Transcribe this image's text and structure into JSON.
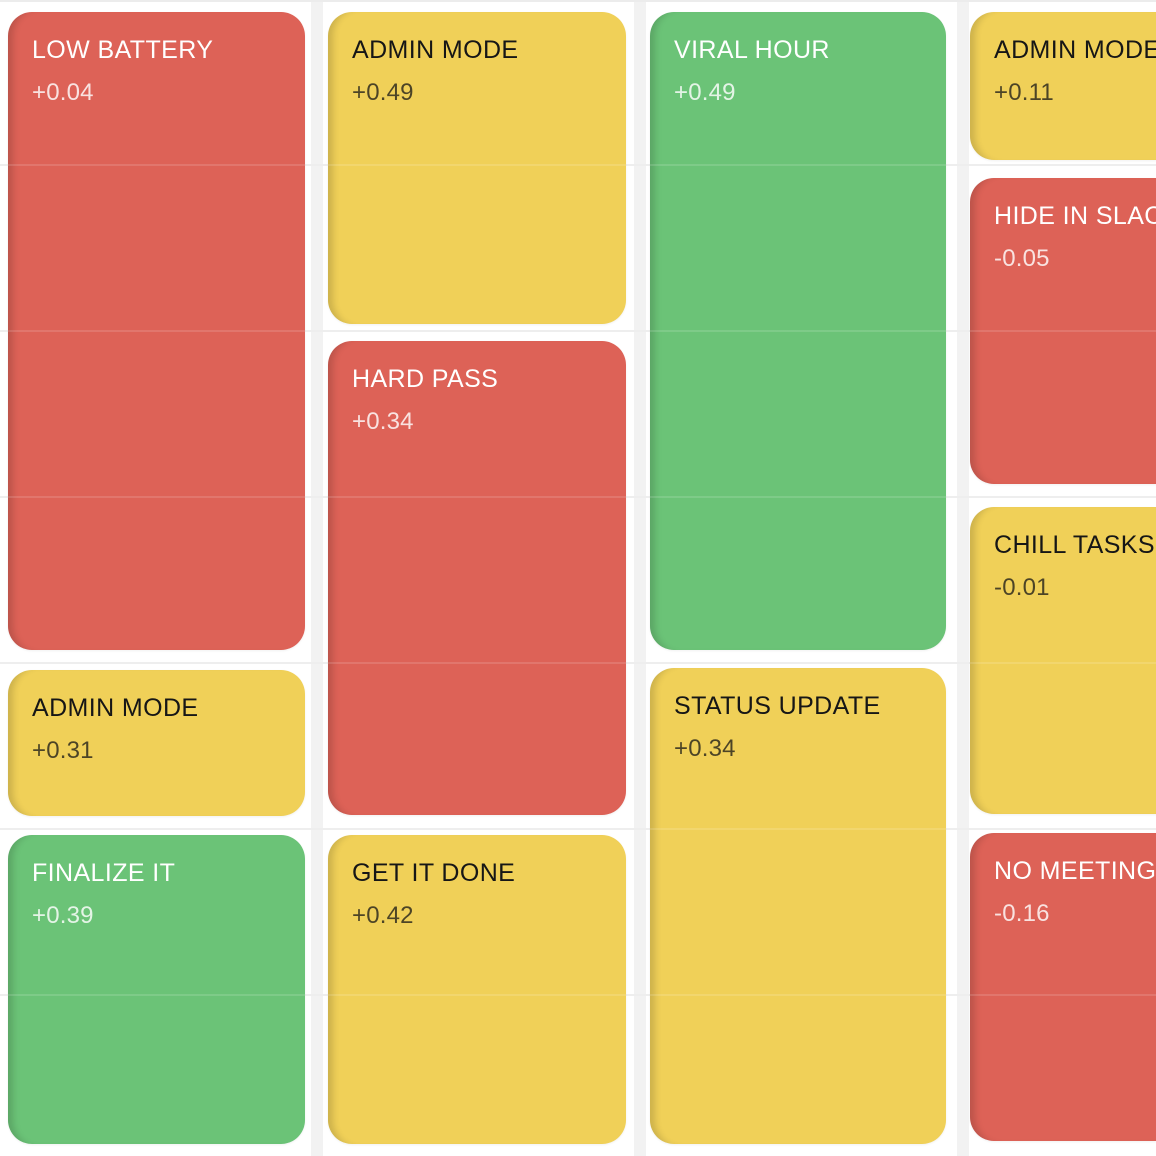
{
  "theme": {
    "bg": "#FFFFFF",
    "grid-line": "#ECECEC",
    "column-bar": "#F2F2F2",
    "red": "#DD6257",
    "yellow": "#F0D058",
    "green": "#6BC377",
    "text-light": "#FFFFFF",
    "text-dark": "#161616"
  },
  "cards": [
    {
      "label": "LOW BATTERY",
      "value": "+0.04",
      "color": "red"
    },
    {
      "label": "ADMIN MODE",
      "value": "+0.31",
      "color": "yellow"
    },
    {
      "label": "FINALIZE IT",
      "value": "+0.39",
      "color": "green"
    },
    {
      "label": "ADMIN MODE",
      "value": "+0.49",
      "color": "yellow"
    },
    {
      "label": "HARD PASS",
      "value": "+0.34",
      "color": "red"
    },
    {
      "label": "GET IT DONE",
      "value": "+0.42",
      "color": "yellow"
    },
    {
      "label": "VIRAL HOUR",
      "value": "+0.49",
      "color": "green"
    },
    {
      "label": "STATUS UPDATE",
      "value": "+0.34",
      "color": "yellow"
    },
    {
      "label": "ADMIN MODE",
      "value": "+0.11",
      "color": "yellow"
    },
    {
      "label": "HIDE IN SLACK",
      "value": "-0.05",
      "color": "red"
    },
    {
      "label": "CHILL TASKS",
      "value": "-0.01",
      "color": "yellow"
    },
    {
      "label": "NO MEETINGS",
      "value": "-0.16",
      "color": "red"
    }
  ]
}
